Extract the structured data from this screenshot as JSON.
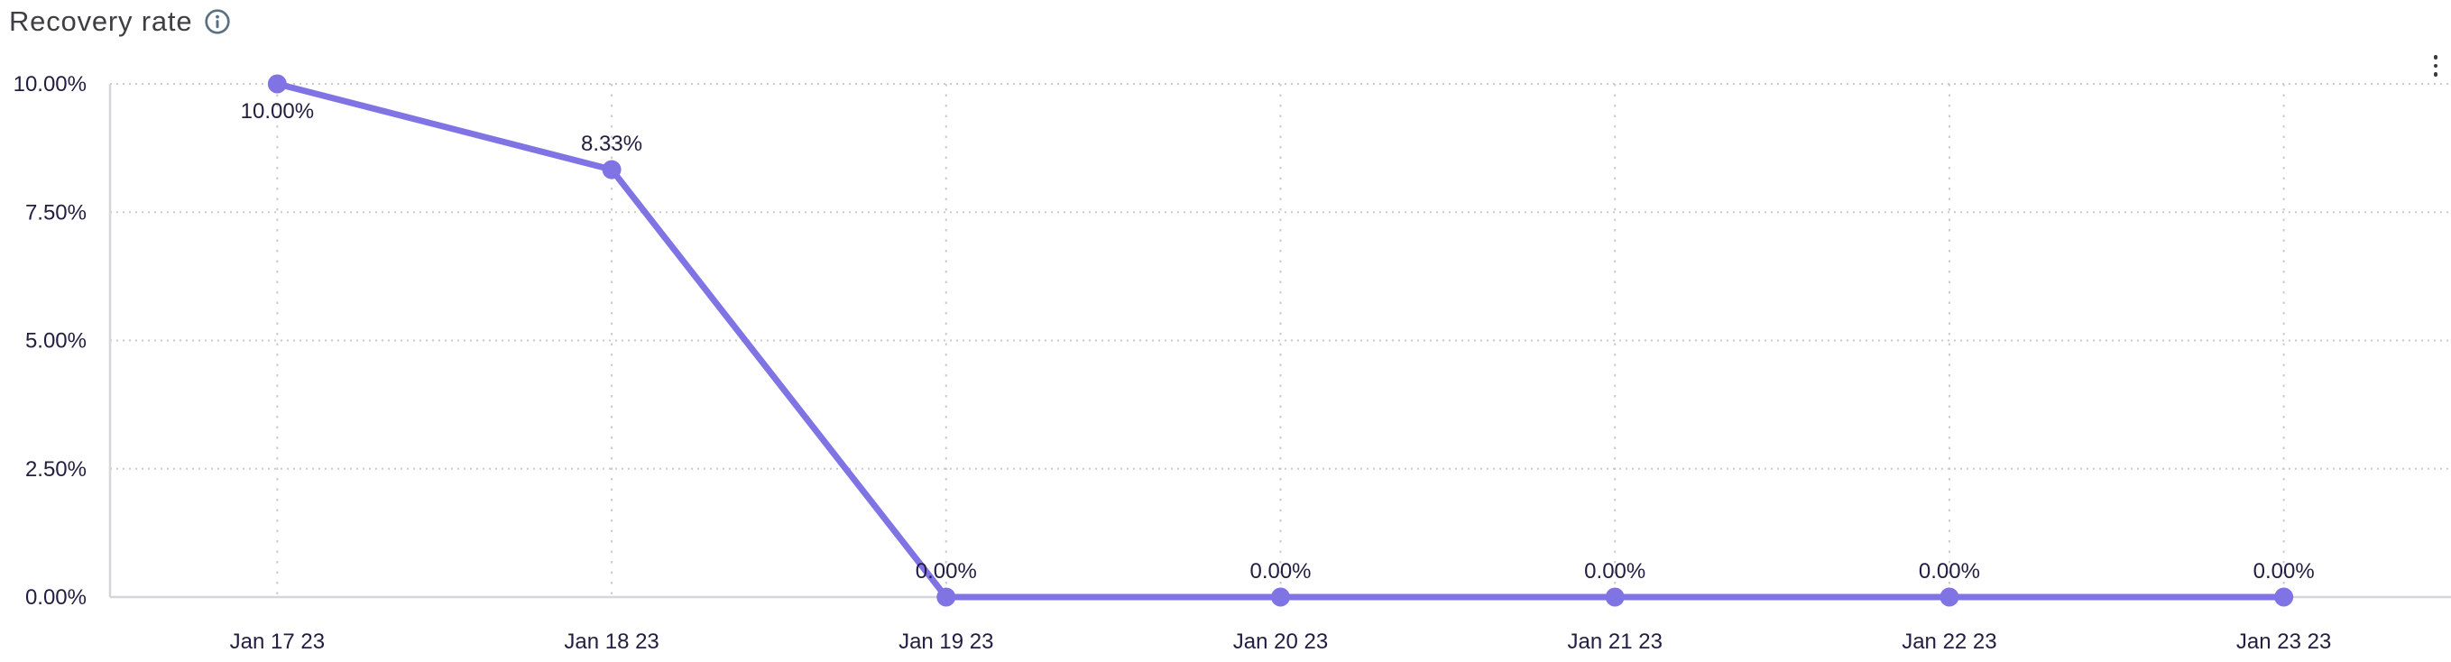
{
  "header": {
    "title": "Recovery rate",
    "info_icon": "info-icon",
    "menu_icon": "kebab-menu-icon"
  },
  "colors": {
    "title_text": "#3e3e43",
    "axis_text": "#221e41",
    "label_text": "#221e41",
    "line": "#8074e5",
    "point": "#8074e5",
    "grid": "#cbcbcd",
    "axis_line": "#d6d6da",
    "icon": "#5b7083",
    "icon_dark": "#3a3a3e"
  },
  "chart_data": {
    "type": "line",
    "title": "Recovery rate",
    "categories": [
      "Jan 17 23",
      "Jan 18 23",
      "Jan 19 23",
      "Jan 20 23",
      "Jan 21 23",
      "Jan 22 23",
      "Jan 23 23"
    ],
    "values": [
      10,
      8.33,
      0,
      0,
      0,
      0,
      0
    ],
    "point_labels": [
      "10.00%",
      "8.33%",
      "0.00%",
      "0.00%",
      "0.00%",
      "0.00%",
      "0.00%"
    ],
    "point_label_positions": [
      "below",
      "above",
      "above",
      "above",
      "above",
      "above",
      "above"
    ],
    "ylim": [
      0,
      10
    ],
    "yticks": [
      {
        "value": 0,
        "label": "0.00%"
      },
      {
        "value": 2.5,
        "label": "2.50%"
      },
      {
        "value": 5,
        "label": "5.00%"
      },
      {
        "value": 7.5,
        "label": "7.50%"
      },
      {
        "value": 10,
        "label": "10.00%"
      }
    ],
    "xlabel": "",
    "ylabel": "",
    "grid": "dotted",
    "legend": "none"
  }
}
